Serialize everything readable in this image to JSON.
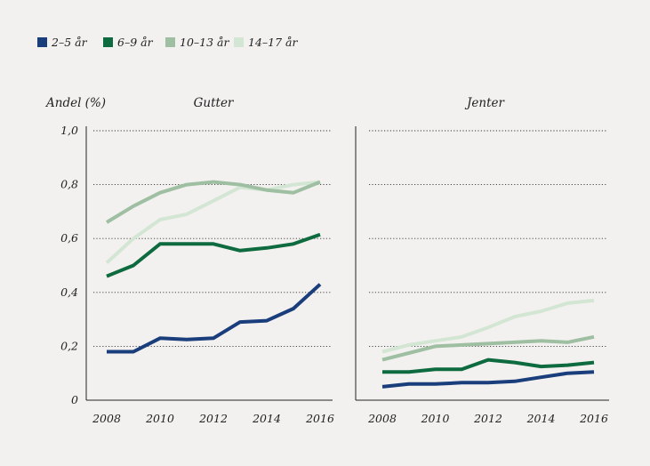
{
  "legend": [
    {
      "label": "2–5 år",
      "color": "#1a3d7c"
    },
    {
      "label": "6–9 år",
      "color": "#0e6b3f"
    },
    {
      "label": "10–13 år",
      "color": "#9fbfa3"
    },
    {
      "label": "14–17 år",
      "color": "#d3e6d4"
    }
  ],
  "ylabel": "Andel (%)",
  "chart_data": [
    {
      "type": "line",
      "title": "Gutter",
      "ylabel": "Andel (%)",
      "ylim": [
        0,
        1.0
      ],
      "yticks": [
        "0",
        "0,2",
        "0,4",
        "0,6",
        "0,8",
        "1,0"
      ],
      "xticks": [
        "2008",
        "2010",
        "2012",
        "2014",
        "2016"
      ],
      "grid": "horizontal dotted",
      "x": [
        2008,
        2009,
        2010,
        2011,
        2012,
        2013,
        2014,
        2015,
        2016
      ],
      "series": [
        {
          "name": "2–5 år",
          "color": "#1a3d7c",
          "values": [
            0.18,
            0.18,
            0.23,
            0.225,
            0.23,
            0.29,
            0.295,
            0.34,
            0.43
          ]
        },
        {
          "name": "6–9 år",
          "color": "#0e6b3f",
          "values": [
            0.46,
            0.5,
            0.58,
            0.58,
            0.58,
            0.555,
            0.565,
            0.58,
            0.615
          ]
        },
        {
          "name": "10–13 år",
          "color": "#9fbfa3",
          "values": [
            0.66,
            0.72,
            0.77,
            0.8,
            0.81,
            0.8,
            0.78,
            0.77,
            0.81
          ]
        },
        {
          "name": "14–17 år",
          "color": "#d3e6d4",
          "values": [
            0.51,
            0.6,
            0.67,
            0.69,
            0.74,
            0.79,
            0.78,
            0.8,
            0.81
          ]
        }
      ]
    },
    {
      "type": "line",
      "title": "Jenter",
      "ylim": [
        0,
        1.0
      ],
      "xticks": [
        "2008",
        "2010",
        "2012",
        "2014",
        "2016"
      ],
      "grid": "horizontal dotted",
      "x": [
        2008,
        2009,
        2010,
        2011,
        2012,
        2013,
        2014,
        2015,
        2016
      ],
      "series": [
        {
          "name": "2–5 år",
          "color": "#1a3d7c",
          "values": [
            0.05,
            0.06,
            0.06,
            0.065,
            0.065,
            0.07,
            0.085,
            0.1,
            0.105
          ]
        },
        {
          "name": "6–9 år",
          "color": "#0e6b3f",
          "values": [
            0.105,
            0.105,
            0.115,
            0.115,
            0.15,
            0.14,
            0.125,
            0.13,
            0.14
          ]
        },
        {
          "name": "10–13 år",
          "color": "#9fbfa3",
          "values": [
            0.15,
            0.175,
            0.2,
            0.205,
            0.21,
            0.215,
            0.22,
            0.215,
            0.235
          ]
        },
        {
          "name": "14–17 år",
          "color": "#d3e6d4",
          "values": [
            0.18,
            0.205,
            0.22,
            0.235,
            0.27,
            0.31,
            0.33,
            0.36,
            0.37
          ]
        }
      ]
    }
  ]
}
